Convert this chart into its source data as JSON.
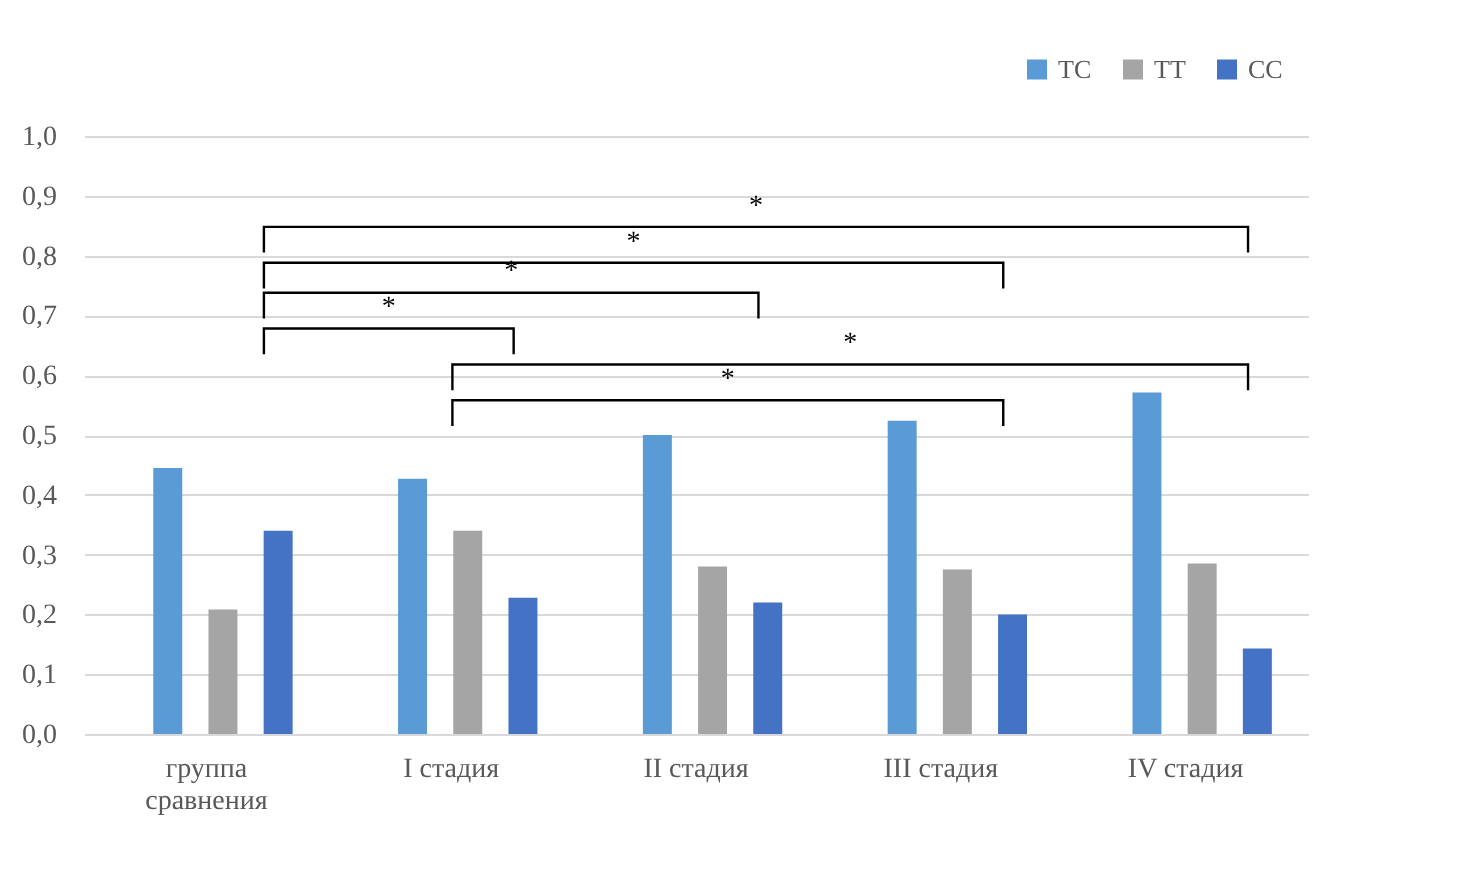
{
  "chart_data": {
    "type": "bar",
    "categories": [
      "группа\nсравнения",
      "I стадия",
      "II стадия",
      "III стадия",
      "IV стадия"
    ],
    "series": [
      {
        "name": "TC",
        "color": "#5b9bd5",
        "values": [
          0.445,
          0.427,
          0.5,
          0.524,
          0.571
        ]
      },
      {
        "name": "TT",
        "color": "#a5a5a5",
        "values": [
          0.208,
          0.34,
          0.28,
          0.275,
          0.285
        ]
      },
      {
        "name": "CC",
        "color": "#4472c4",
        "values": [
          0.34,
          0.228,
          0.22,
          0.2,
          0.143
        ]
      }
    ],
    "ylim": [
      0,
      1
    ],
    "yticks": [
      {
        "value": 0,
        "label": "0,0"
      },
      {
        "value": 0.1,
        "label": "0,1"
      },
      {
        "value": 0.2,
        "label": "0,2"
      },
      {
        "value": 0.3,
        "label": "0,3"
      },
      {
        "value": 0.4,
        "label": "0,4"
      },
      {
        "value": 0.5,
        "label": "0,5"
      },
      {
        "value": 0.6,
        "label": "0,6"
      },
      {
        "value": 0.7,
        "label": "0,7"
      },
      {
        "value": 0.8,
        "label": "0,8"
      },
      {
        "value": 0.9,
        "label": "0,9"
      },
      {
        "value": 1,
        "label": "1,0"
      }
    ],
    "grid": "y",
    "legend": "top right",
    "annotations": [
      "*",
      "*",
      "*",
      "*",
      "*",
      "*"
    ]
  }
}
